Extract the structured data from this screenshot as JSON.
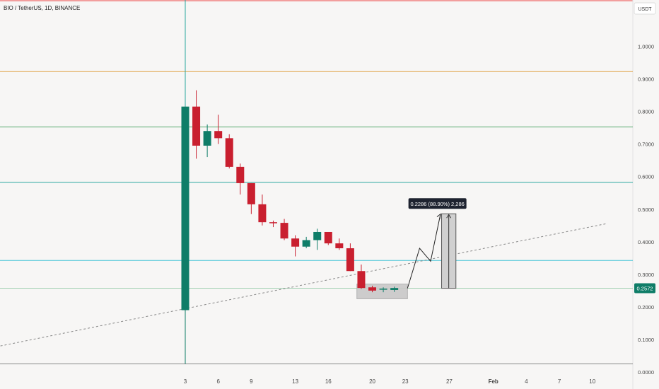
{
  "header": {
    "symbol_title": "BIO / TetherUS, 1D, BINANCE"
  },
  "price_axis": {
    "currency": "USDT",
    "current_price_label": "0.2572"
  },
  "measure": {
    "label": "0.2286 (88.90%) 2,286"
  },
  "colors": {
    "up": "#0f7d68",
    "down": "#c91f2f",
    "grid_top": "#f08080",
    "orange_line": "#e0a040",
    "green_line": "#53a76a",
    "teal_line": "#2ba8a0",
    "cyan_line": "#45c3d6",
    "light_green_line": "#a0d0b0",
    "trend": "#888888",
    "box": "#c8c8c8"
  },
  "chart_data": {
    "type": "candlestick",
    "title": "BIO / TetherUS, 1D, BINANCE",
    "ylim": [
      0,
      1.1
    ],
    "y_ticks": [
      "0.0000",
      "0.1000",
      "0.2000",
      "0.3000",
      "0.4000",
      "0.5000",
      "0.6000",
      "0.7000",
      "0.8000",
      "0.9000",
      "1.0000"
    ],
    "x_ticks": [
      {
        "label": "3",
        "day": 3
      },
      {
        "label": "6",
        "day": 6
      },
      {
        "label": "9",
        "day": 9
      },
      {
        "label": "13",
        "day": 13
      },
      {
        "label": "16",
        "day": 16
      },
      {
        "label": "20",
        "day": 20
      },
      {
        "label": "23",
        "day": 23
      },
      {
        "label": "27",
        "day": 27
      },
      {
        "label": "Feb",
        "day": 31
      },
      {
        "label": "4",
        "day": 34
      },
      {
        "label": "7",
        "day": 37
      },
      {
        "label": "10",
        "day": 40
      }
    ],
    "candles": [
      {
        "day": 3,
        "open": 0.19,
        "high": 0.815,
        "low": 0.025,
        "close": 0.815
      },
      {
        "day": 4,
        "open": 0.815,
        "high": 0.865,
        "low": 0.655,
        "close": 0.695
      },
      {
        "day": 5,
        "open": 0.695,
        "high": 0.76,
        "low": 0.66,
        "close": 0.74
      },
      {
        "day": 6,
        "open": 0.74,
        "high": 0.79,
        "low": 0.7,
        "close": 0.718
      },
      {
        "day": 7,
        "open": 0.718,
        "high": 0.73,
        "low": 0.625,
        "close": 0.63
      },
      {
        "day": 8,
        "open": 0.63,
        "high": 0.64,
        "low": 0.545,
        "close": 0.58
      },
      {
        "day": 9,
        "open": 0.58,
        "high": 0.58,
        "low": 0.485,
        "close": 0.515
      },
      {
        "day": 10,
        "open": 0.515,
        "high": 0.545,
        "low": 0.45,
        "close": 0.46
      },
      {
        "day": 11,
        "open": 0.46,
        "high": 0.465,
        "low": 0.445,
        "close": 0.458
      },
      {
        "day": 12,
        "open": 0.458,
        "high": 0.47,
        "low": 0.405,
        "close": 0.41
      },
      {
        "day": 13,
        "open": 0.41,
        "high": 0.42,
        "low": 0.355,
        "close": 0.385
      },
      {
        "day": 14,
        "open": 0.385,
        "high": 0.415,
        "low": 0.38,
        "close": 0.405
      },
      {
        "day": 15,
        "open": 0.405,
        "high": 0.44,
        "low": 0.375,
        "close": 0.43
      },
      {
        "day": 16,
        "open": 0.43,
        "high": 0.43,
        "low": 0.39,
        "close": 0.395
      },
      {
        "day": 17,
        "open": 0.395,
        "high": 0.41,
        "low": 0.375,
        "close": 0.38
      },
      {
        "day": 18,
        "open": 0.38,
        "high": 0.395,
        "low": 0.31,
        "close": 0.31
      },
      {
        "day": 19,
        "open": 0.31,
        "high": 0.33,
        "low": 0.255,
        "close": 0.258
      },
      {
        "day": 20,
        "open": 0.26,
        "high": 0.265,
        "low": 0.245,
        "close": 0.25
      },
      {
        "day": 21,
        "open": 0.255,
        "high": 0.26,
        "low": 0.245,
        "close": 0.256
      },
      {
        "day": 22,
        "open": 0.252,
        "high": 0.262,
        "low": 0.246,
        "close": 0.258
      }
    ],
    "horizontal_levels": [
      {
        "price": 0.9225,
        "color_key": "orange_line"
      },
      {
        "price": 0.7525,
        "color_key": "green_line"
      },
      {
        "price": 0.5825,
        "color_key": "teal_line"
      },
      {
        "price": 0.3425,
        "color_key": "cyan_line"
      },
      {
        "price": 0.2572,
        "color_key": "light_green_line"
      },
      {
        "price": 0.025,
        "color_key": "trend"
      }
    ],
    "trendline": {
      "p1": {
        "day": -13.8,
        "price": 0.08
      },
      "p2": {
        "day": 41.2,
        "price": 0.455
      }
    },
    "consolidation_box": {
      "day_start": 18.6,
      "day_end": 23.2,
      "price_top": 0.27,
      "price_bottom": 0.225
    },
    "projection_path": [
      {
        "day": 23.2,
        "price": 0.257
      },
      {
        "day": 24.3,
        "price": 0.38
      },
      {
        "day": 25.3,
        "price": 0.34
      },
      {
        "day": 26.2,
        "price": 0.485
      }
    ],
    "measure_range": {
      "day_start": 26.3,
      "day_end": 27.6,
      "price_low": 0.2572,
      "price_high": 0.4858
    },
    "vertical_marker_day": 3
  }
}
